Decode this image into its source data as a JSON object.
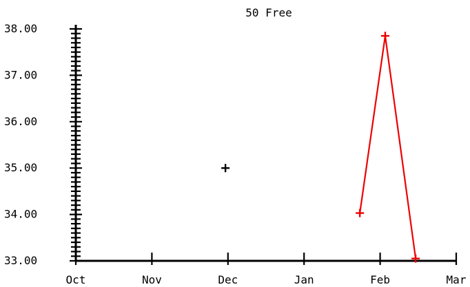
{
  "chart_data": {
    "type": "line",
    "title": "50 Free",
    "x_ticks": [
      "Oct",
      "Nov",
      "Dec",
      "Jan",
      "Feb",
      "Mar"
    ],
    "y_ticks": [
      "33.00",
      "34.00",
      "35.00",
      "36.00",
      "37.00",
      "38.00"
    ],
    "ylim": [
      33.0,
      38.0
    ],
    "xlim_months": [
      "Oct",
      "Mar"
    ],
    "series": [
      {
        "color": "#000000",
        "line": false,
        "marker": "+",
        "points": [
          {
            "x": "Nov 30",
            "y": 35.0
          }
        ]
      },
      {
        "color": "#ee0000",
        "line": true,
        "marker": "+",
        "points": [
          {
            "x": "Jan 23",
            "y": 34.03
          },
          {
            "x": "Feb 3",
            "y": 37.85
          },
          {
            "x": "Feb 15",
            "y": 33.05
          }
        ]
      }
    ],
    "minor_y_tick_step": 0.1,
    "grid": false
  }
}
